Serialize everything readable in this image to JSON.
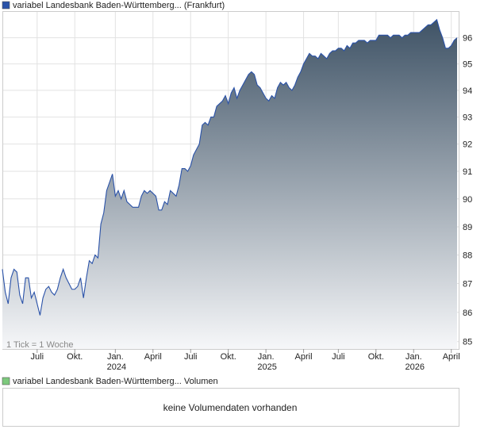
{
  "chart_data": {
    "type": "area",
    "series": [
      {
        "name": "variabel Landesbank Baden-Württemberg... (Frankfurt)",
        "color": "#2a52a8",
        "values": [
          87.5,
          86.7,
          86.3,
          87.2,
          87.5,
          87.4,
          86.6,
          86.3,
          87.2,
          87.2,
          86.5,
          86.7,
          86.3,
          85.9,
          86.5,
          86.8,
          86.9,
          86.7,
          86.6,
          86.8,
          87.2,
          87.5,
          87.2,
          87.0,
          86.8,
          86.8,
          86.9,
          87.2,
          86.5,
          87.2,
          87.8,
          87.7,
          88.0,
          87.9,
          89.1,
          89.5,
          90.3,
          90.6,
          90.9,
          90.1,
          90.3,
          90.0,
          90.3,
          89.9,
          89.8,
          89.7,
          89.7,
          89.7,
          90.1,
          90.3,
          90.2,
          90.3,
          90.2,
          90.1,
          89.6,
          89.6,
          89.9,
          89.8,
          90.3,
          90.2,
          90.1,
          90.5,
          91.1,
          91.1,
          91.0,
          91.2,
          91.6,
          91.8,
          92.0,
          92.7,
          92.8,
          92.7,
          93.0,
          93.0,
          93.4,
          93.5,
          93.6,
          93.8,
          93.5,
          93.9,
          94.1,
          93.7,
          94.0,
          94.2,
          94.4,
          94.6,
          94.7,
          94.6,
          94.2,
          94.1,
          93.9,
          93.7,
          93.6,
          93.8,
          93.7,
          94.1,
          94.3,
          94.2,
          94.3,
          94.1,
          94.0,
          94.2,
          94.5,
          94.7,
          95.0,
          95.2,
          95.4,
          95.3,
          95.3,
          95.2,
          95.4,
          95.3,
          95.2,
          95.4,
          95.5,
          95.5,
          95.6,
          95.6,
          95.5,
          95.7,
          95.6,
          95.8,
          95.8,
          95.9,
          95.9,
          95.9,
          95.8,
          95.9,
          95.9,
          95.9,
          96.1,
          96.1,
          96.1,
          96.1,
          96.0,
          96.1,
          96.1,
          96.1,
          96.0,
          96.1,
          96.1,
          96.2,
          96.2,
          96.2,
          96.2,
          96.3,
          96.4,
          96.5,
          96.5,
          96.6,
          96.7,
          96.3,
          96.0,
          95.6,
          95.6,
          95.7,
          95.9,
          96.0
        ]
      }
    ],
    "categories": [
      null,
      null,
      null,
      null,
      null,
      null,
      null,
      null,
      null,
      null,
      null,
      null,
      "Juli",
      null,
      null,
      null,
      null,
      null,
      null,
      null,
      null,
      null,
      null,
      null,
      null,
      "Okt.",
      null,
      null,
      null,
      null,
      null,
      null,
      null,
      null,
      null,
      null,
      null,
      null,
      null,
      "Jan. 2024",
      null,
      null,
      null,
      null,
      null,
      null,
      null,
      null,
      null,
      null,
      null,
      null,
      "April",
      null,
      null,
      null,
      null,
      null,
      null,
      null,
      null,
      null,
      null,
      null,
      null,
      "Juli",
      null,
      null,
      null,
      null,
      null,
      null,
      null,
      null,
      null,
      null,
      null,
      null,
      "Okt.",
      null,
      null,
      null,
      null,
      null,
      null,
      null,
      null,
      null,
      null,
      null,
      null,
      "Jan. 2025",
      null,
      null,
      null,
      null,
      null,
      null,
      null,
      null,
      null,
      null,
      null,
      null,
      "April",
      null,
      null,
      null,
      null,
      null,
      null,
      null,
      null,
      null,
      null,
      null,
      "Juli",
      null,
      null,
      null,
      null,
      null,
      null,
      null,
      null,
      null,
      null,
      null,
      null,
      "Okt.",
      null,
      null,
      null,
      null,
      null,
      null,
      null,
      null,
      null,
      null,
      null,
      null,
      "Jan. 2026",
      null,
      null,
      null,
      null,
      null,
      null,
      null,
      null,
      null,
      null,
      null,
      null,
      "April",
      null,
      null
    ],
    "ylim": [
      84.75,
      97
    ],
    "yticks": [
      85,
      86,
      87,
      88,
      89,
      90,
      91,
      92,
      93,
      94,
      95,
      96
    ],
    "log_scale": true,
    "grid": true,
    "annotation": "1 Tick = 1 Woche"
  },
  "volume_panel": {
    "legend": "variabel Landesbank Baden-Württemberg... Volumen",
    "legend_color": "#7dc97d",
    "message": "keine Volumendaten vorhanden"
  }
}
